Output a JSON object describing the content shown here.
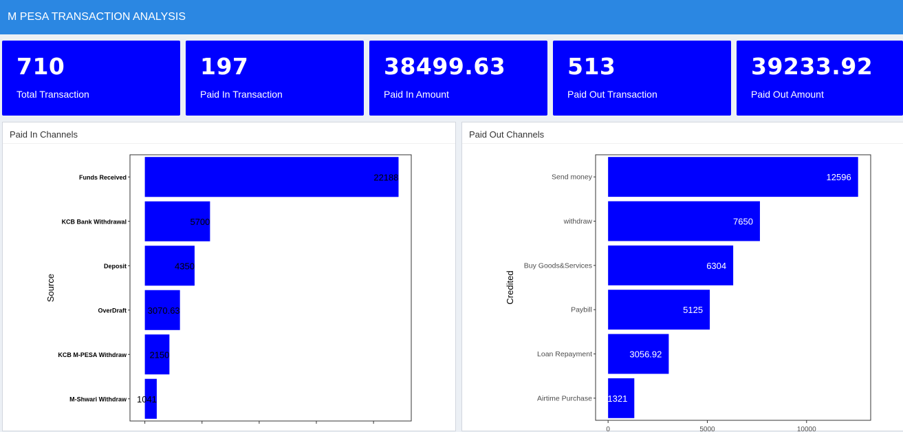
{
  "header": {
    "title": "M PESA TRANSACTION ANALYSIS"
  },
  "value_boxes": [
    {
      "value": "710",
      "label": "Total Transaction"
    },
    {
      "value": "197",
      "label": "Paid In Transaction"
    },
    {
      "value": "38499.63",
      "label": "Paid In Amount"
    },
    {
      "value": "513",
      "label": "Paid Out Transaction"
    },
    {
      "value": "39233.92",
      "label": "Paid Out Amount"
    }
  ],
  "colors": {
    "header": "#2b87e2",
    "box": "#0000ff",
    "bar": "#0000ff"
  },
  "panels": {
    "paid_in": {
      "title": "Paid In Channels"
    },
    "paid_out": {
      "title": "Paid Out Channels"
    }
  },
  "chart_data": [
    {
      "type": "bar",
      "orientation": "horizontal",
      "title": "",
      "ylabel": "Source",
      "xlabel": "",
      "categories": [
        "Funds Received",
        "KCB Bank Withdrawal",
        "Deposit",
        "OverDraft",
        "KCB M-PESA Withdraw",
        "M-Shwari Withdraw"
      ],
      "values": [
        22188,
        5700,
        4350,
        3070.63,
        2150,
        1041
      ],
      "data_labels": [
        "22188",
        "5700",
        "4350",
        "3070.63",
        "2150",
        "1041"
      ],
      "xlim": [
        -1300,
        23300
      ],
      "x_ticks": [
        0,
        5000,
        10000,
        15000,
        20000
      ],
      "label_color": "#000000",
      "grid": false
    },
    {
      "type": "bar",
      "orientation": "horizontal",
      "title": "",
      "ylabel": "Credited",
      "xlabel": "",
      "categories": [
        "Send money",
        "withdraw",
        "Buy Goods&Services",
        "Paybill",
        "Loan Repayment",
        "Airtime Purchase"
      ],
      "values": [
        12596,
        7650,
        6304,
        5125,
        3056.92,
        1321
      ],
      "data_labels": [
        "12596",
        "7650",
        "6304",
        "5125",
        "3056.92",
        "1321"
      ],
      "xlim": [
        -630,
        13230
      ],
      "x_ticks": [
        0,
        5000,
        10000
      ],
      "x_tick_labels": [
        "0",
        "5000",
        "10000"
      ],
      "label_color": "#ffffff",
      "grid": false
    }
  ]
}
